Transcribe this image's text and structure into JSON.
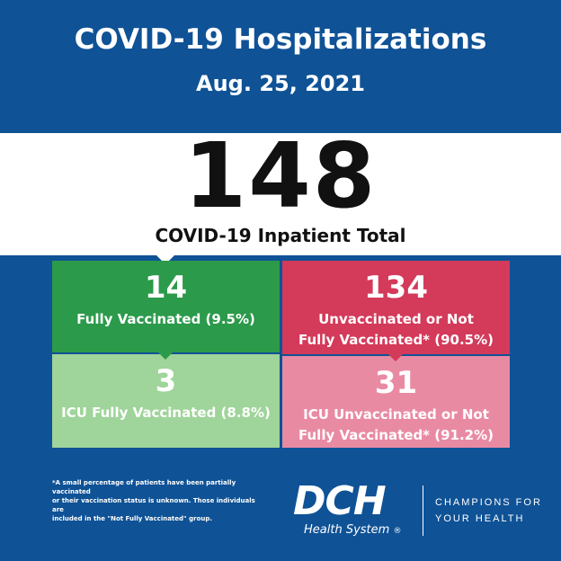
{
  "header": {
    "title": "COVID-19 Hospitalizations",
    "date": "Aug. 25, 2021"
  },
  "total": {
    "value": "148",
    "label": "COVID-19 Inpatient Total"
  },
  "cells": [
    {
      "value": "14",
      "label": "Fully Vaccinated (9.5%)",
      "color": "#2b9a4b"
    },
    {
      "value": "134",
      "label_line1": "Unvaccinated or Not",
      "label_line2": "Fully Vaccinated* (90.5%)",
      "color": "#d43a5a"
    },
    {
      "value": "3",
      "label": "ICU Fully Vaccinated (8.8%)",
      "color": "#9fd49a"
    },
    {
      "value": "31",
      "label_line1": "ICU Unvaccinated or Not",
      "label_line2": "Fully Vaccinated* (91.2%)",
      "color": "#e98aa3"
    }
  ],
  "footnote": {
    "line1": "*A small percentage of patients have been partially vaccinated",
    "line2": "or their vaccination status is unknown. Those individuals are",
    "line3": "included in the \"Not Fully Vaccinated\" group."
  },
  "brand": {
    "logo_text": "DCH",
    "logo_sub": "Health System",
    "registered": "®",
    "tagline_line1": "CHAMPIONS FOR",
    "tagline_line2": "YOUR HEALTH",
    "background": "#0f5296"
  }
}
